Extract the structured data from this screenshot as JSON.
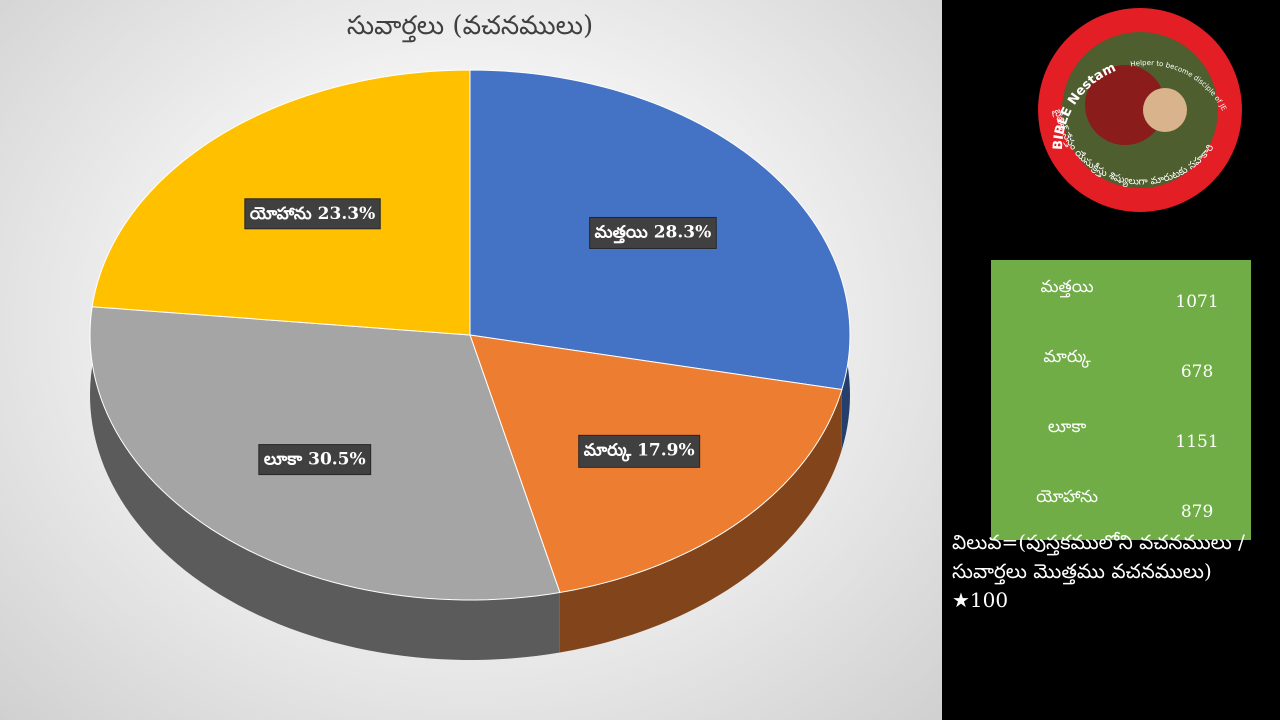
{
  "chart_data": {
    "type": "pie",
    "title": "సువార్తలు (వచనములు)",
    "categories": [
      "మత్తయి",
      "మార్కు",
      "లూకా",
      "యోహాను"
    ],
    "values": [
      28.3,
      17.9,
      30.5,
      23.3
    ],
    "value_labels": [
      "28.3%",
      "17.9%",
      "30.5%",
      "23.3%"
    ],
    "colors": [
      "#4472c4",
      "#ed7d31",
      "#a5a5a5",
      "#ffc000"
    ]
  },
  "logo": {
    "title": "BIBLE Nestam",
    "slogan": "Helper to become disciple of JESUS CHRIST",
    "telugu": "బైబిల్ నేస్తం యేసుక్రీస్తు శిష్యులుగా మారుటకు సహకారి"
  },
  "table": {
    "rows": [
      [
        "మత్తయి",
        1071
      ],
      [
        "మార్కు",
        678
      ],
      [
        "లూకా",
        1151
      ],
      [
        "యోహాను",
        879
      ]
    ]
  },
  "note": "విలువ=(పుస్తకములోని వచనములు / సువార్తలు మొత్తము వచనములు) ★100"
}
